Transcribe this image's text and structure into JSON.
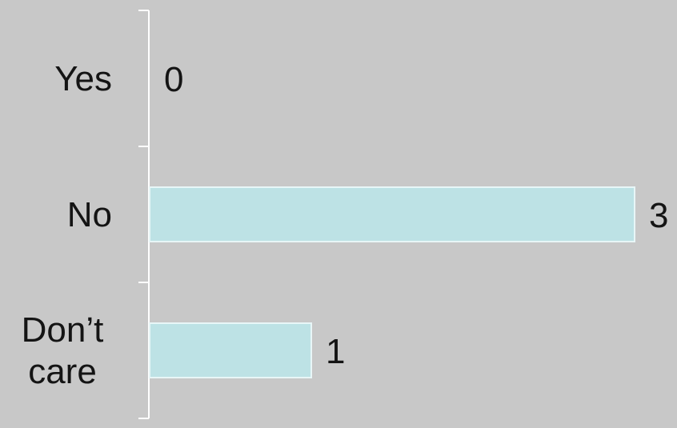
{
  "chart_data": {
    "type": "bar",
    "orientation": "horizontal",
    "categories": [
      [
        "Yes"
      ],
      [
        "No"
      ],
      [
        "Don’t",
        "care"
      ]
    ],
    "values": [
      0,
      3,
      1
    ],
    "value_labels": [
      "0",
      "3",
      "1"
    ],
    "title": "",
    "xlabel": "",
    "ylabel": "",
    "xlim": [
      0,
      3
    ],
    "grid": false,
    "legend": "none",
    "bar_color": "#bde2e5",
    "bar_edge_color": "#e8f6f7",
    "background_color": "#c8c8c8",
    "text_color": "#141414",
    "axis_color": "#ffffff"
  }
}
